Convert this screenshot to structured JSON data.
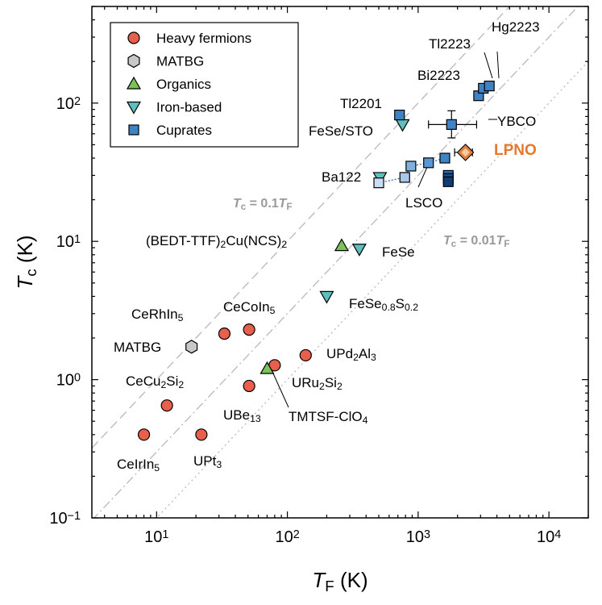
{
  "chart_data": {
    "type": "scatter",
    "x_scale": "log",
    "y_scale": "log",
    "xlim": [
      3.2,
      20000
    ],
    "ylim": [
      0.1,
      500
    ],
    "xlabel": {
      "main": "T",
      "sub": "F",
      "unit": " (K)"
    },
    "ylabel": {
      "main": "T",
      "sub": "c",
      "unit": " (K)"
    },
    "x_ticks": [
      {
        "value": 10,
        "base": "10",
        "exp": "1"
      },
      {
        "value": 100,
        "base": "10",
        "exp": "2"
      },
      {
        "value": 1000,
        "base": "10",
        "exp": "3"
      },
      {
        "value": 10000,
        "base": "10",
        "exp": "4"
      }
    ],
    "y_ticks": [
      {
        "value": 0.1,
        "base": "10",
        "exp": "−1"
      },
      {
        "value": 1,
        "base": "10",
        "exp": "0"
      },
      {
        "value": 10,
        "base": "10",
        "exp": "1"
      },
      {
        "value": 100,
        "base": "10",
        "exp": "2"
      }
    ],
    "legend": {
      "position": "top-left",
      "entries": [
        {
          "label": "Heavy fermions",
          "marker": "circle",
          "color": "#e8604c"
        },
        {
          "label": "MATBG",
          "marker": "hexagon",
          "color": "#c8c8c8"
        },
        {
          "label": "Organics",
          "marker": "triangle-up",
          "color": "#7cc15a"
        },
        {
          "label": "Iron-based",
          "marker": "triangle-down",
          "color": "#5fbfbd"
        },
        {
          "label": "Cuprates",
          "marker": "square",
          "color": "#3f83c5"
        }
      ]
    },
    "reference_lines": [
      {
        "factor": 0.1,
        "style": "dashed",
        "label": {
          "a": "T",
          "b": "c",
          "c": " = 0.1",
          "d": "T",
          "e": "F"
        }
      },
      {
        "factor": 0.01,
        "style": "dotted",
        "label": {
          "a": "T",
          "b": "c",
          "c": " = 0.01",
          "d": "T",
          "e": "F"
        }
      },
      {
        "factor": 0.03,
        "style": "dashdot"
      }
    ],
    "series": [
      {
        "category": "Heavy fermions",
        "marker": "circle",
        "color": "#e8604c",
        "points": [
          {
            "x": 8,
            "y": 0.4,
            "label": [
              {
                "t": "CeIrIn"
              },
              {
                "t": "5",
                "s": "sub"
              }
            ]
          },
          {
            "x": 12,
            "y": 0.65,
            "label": [
              {
                "t": "CeCu"
              },
              {
                "t": "2",
                "s": "sub"
              },
              {
                "t": "Si"
              },
              {
                "t": "2",
                "s": "sub"
              }
            ]
          },
          {
            "x": 22,
            "y": 0.4,
            "label": [
              {
                "t": "UPt"
              },
              {
                "t": "3",
                "s": "sub"
              }
            ]
          },
          {
            "x": 33,
            "y": 2.15,
            "label": [
              {
                "t": "CeRhIn"
              },
              {
                "t": "5",
                "s": "sub"
              }
            ]
          },
          {
            "x": 51,
            "y": 2.3,
            "label": [
              {
                "t": "CeCoIn"
              },
              {
                "t": "5",
                "s": "sub"
              }
            ]
          },
          {
            "x": 51,
            "y": 0.9,
            "label": [
              {
                "t": "UBe"
              },
              {
                "t": "13",
                "s": "sub"
              }
            ]
          },
          {
            "x": 80,
            "y": 1.27,
            "label": [
              {
                "t": "URu"
              },
              {
                "t": "2",
                "s": "sub"
              },
              {
                "t": "Si"
              },
              {
                "t": "2",
                "s": "sub"
              }
            ]
          },
          {
            "x": 138,
            "y": 1.5,
            "label": [
              {
                "t": "UPd"
              },
              {
                "t": "2",
                "s": "sub"
              },
              {
                "t": "Al"
              },
              {
                "t": "3",
                "s": "sub"
              }
            ]
          }
        ]
      },
      {
        "category": "MATBG",
        "marker": "hexagon",
        "color": "#c8c8c8",
        "points": [
          {
            "x": 18.5,
            "y": 1.73,
            "label": [
              {
                "t": "MATBG"
              }
            ]
          }
        ]
      },
      {
        "category": "Organics",
        "marker": "triangle-up",
        "color": "#7cc15a",
        "points": [
          {
            "x": 70,
            "y": 1.2,
            "label": [
              {
                "t": "TMTSF-ClO"
              },
              {
                "t": "4",
                "s": "sub"
              }
            ]
          },
          {
            "x": 260,
            "y": 9.3,
            "label": [
              {
                "t": "(BEDT-TTF)"
              },
              {
                "t": "2",
                "s": "sub"
              },
              {
                "t": "Cu(NCS)"
              },
              {
                "t": "2",
                "s": "sub"
              }
            ]
          }
        ]
      },
      {
        "category": "Iron-based",
        "marker": "triangle-down",
        "color": "#5fbfbd",
        "points": [
          {
            "x": 200,
            "y": 4.0,
            "label": [
              {
                "t": "FeSe"
              },
              {
                "t": "0.8",
                "s": "sub"
              },
              {
                "t": "S"
              },
              {
                "t": "0.2",
                "s": "sub"
              }
            ]
          },
          {
            "x": 355,
            "y": 8.8,
            "label": [
              {
                "t": "FeSe"
              }
            ]
          },
          {
            "x": 510,
            "y": 29,
            "label": [
              {
                "t": "Ba122"
              }
            ]
          },
          {
            "x": 760,
            "y": 70,
            "label": [
              {
                "t": "FeSe/STO"
              }
            ]
          }
        ]
      },
      {
        "category": "Cuprates",
        "marker": "square",
        "color": "#3f83c5",
        "points": [
          {
            "x": 720,
            "y": 82,
            "label": [
              {
                "t": "Tl2201"
              }
            ]
          },
          {
            "x": 1800,
            "y": 70,
            "xerr_low": 1200,
            "xerr_high": 2800,
            "yerr_low": 56,
            "yerr_high": 88,
            "label": [
              {
                "t": "YBCO"
              }
            ]
          },
          {
            "x": 2900,
            "y": 113,
            "label": [
              {
                "t": "Bi2223"
              }
            ]
          },
          {
            "x": 3150,
            "y": 128,
            "label": [
              {
                "t": "Tl2223"
              }
            ]
          },
          {
            "x": 3500,
            "y": 133,
            "label": [
              {
                "t": "Hg2223"
              }
            ]
          }
        ]
      },
      {
        "category": "Cuprates (LSCO)",
        "marker": "square",
        "color": "#3f83c5",
        "shades": [
          "#c9dcf1",
          "#a7c8ea",
          "#7fb0e0",
          "#5a97d4",
          "#3f83c5",
          "#2b6cb1",
          "#1b4f8e",
          "#133d72"
        ],
        "points": [
          {
            "x": 500,
            "y": 26.5
          },
          {
            "x": 790,
            "y": 29
          },
          {
            "x": 880,
            "y": 35
          },
          {
            "x": 1200,
            "y": 37
          },
          {
            "x": 1600,
            "y": 40
          },
          {
            "x": 1700,
            "y": 30
          },
          {
            "x": 1700,
            "y": 28.5
          },
          {
            "x": 1700,
            "y": 27
          }
        ],
        "label": [
          {
            "t": "LSCO"
          }
        ]
      },
      {
        "category": "LPNO",
        "marker": "diamond",
        "color": "#f7c9a0",
        "edge": "#e8762c",
        "points": [
          {
            "x": 2300,
            "y": 44,
            "xerr_low": 1900,
            "xerr_high": 2600,
            "label": [
              {
                "t": "LPNO"
              }
            ]
          }
        ]
      }
    ]
  }
}
